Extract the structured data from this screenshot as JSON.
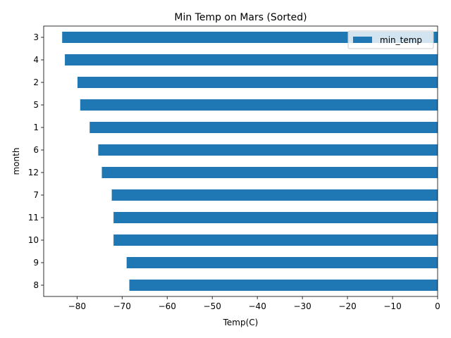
{
  "chart_data": {
    "type": "bar",
    "orientation": "horizontal",
    "title": "Min Temp on Mars (Sorted)",
    "xlabel": "Temp(C)",
    "ylabel": "month",
    "categories": [
      "3",
      "4",
      "2",
      "5",
      "1",
      "6",
      "12",
      "7",
      "11",
      "10",
      "9",
      "8"
    ],
    "series": [
      {
        "name": "min_temp",
        "color": "#1f77b4",
        "values": [
          -83.3,
          -82.7,
          -79.9,
          -79.3,
          -77.2,
          -75.3,
          -74.5,
          -72.3,
          -71.9,
          -71.9,
          -69.0,
          -68.4
        ]
      }
    ],
    "xlim": [
      -87.4,
      0
    ],
    "xticks": [
      -80,
      -70,
      -60,
      -50,
      -40,
      -30,
      -20,
      -10,
      0
    ],
    "xtick_labels": [
      "−80",
      "−70",
      "−60",
      "−50",
      "−40",
      "−30",
      "−20",
      "−10",
      "0"
    ],
    "legend_position": "upper-right",
    "grid": false
  }
}
